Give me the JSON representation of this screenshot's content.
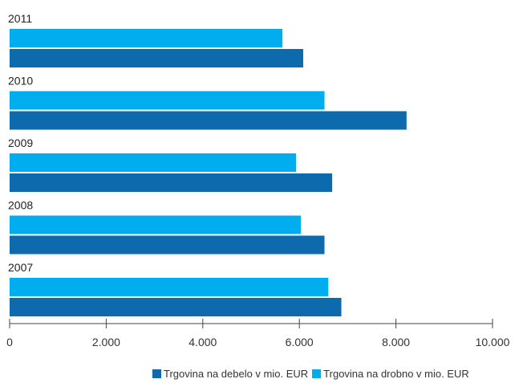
{
  "chart_data": {
    "type": "bar",
    "orientation": "horizontal",
    "categories": [
      "2011",
      "2010",
      "2009",
      "2008",
      "2007"
    ],
    "series": [
      {
        "name": "Trgovina na drobno v mio. EUR",
        "color": "#00adef",
        "values": [
          5650,
          6520,
          5930,
          6030,
          6600
        ]
      },
      {
        "name": "Trgovina na debelo v mio. EUR",
        "color": "#0c6aad",
        "values": [
          6080,
          8220,
          6680,
          6520,
          6870
        ]
      }
    ],
    "xlim": [
      0,
      10000
    ],
    "x_ticks": [
      0,
      2000,
      4000,
      6000,
      8000,
      10000
    ],
    "x_tick_labels": [
      "0",
      "2.000",
      "4.000",
      "6.000",
      "8.000",
      "10.000"
    ],
    "legend_placement": "bottom-right",
    "legend": [
      {
        "label": "Trgovina na debelo v mio. EUR",
        "color": "#0c6aad"
      },
      {
        "label": "Trgovina na drobno v mio. EUR",
        "color": "#00adef"
      }
    ],
    "grid": false
  }
}
